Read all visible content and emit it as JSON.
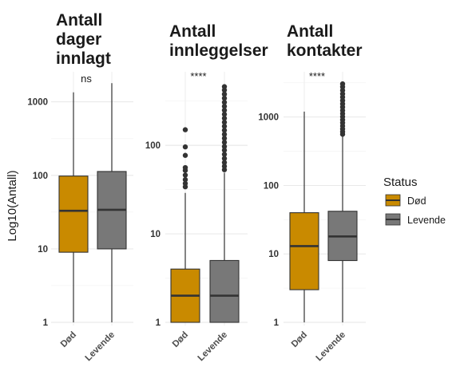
{
  "y_axis_title": "Log10(Antall)",
  "legend": {
    "title": "Status",
    "items": [
      {
        "label": "Død",
        "color": "#C98A00"
      },
      {
        "label": "Levende",
        "color": "#787878"
      }
    ]
  },
  "chart_data": [
    {
      "type": "boxplot",
      "title": [
        "Antall",
        "dager",
        "innlagt"
      ],
      "scale": "log10",
      "ylim": [
        1,
        2000
      ],
      "y_ticks": [
        1,
        10,
        100,
        1000
      ],
      "y_tick_labels": [
        "1",
        "10",
        "100",
        "1000"
      ],
      "categories": [
        "Død",
        "Levende"
      ],
      "significance": "ns",
      "boxes": [
        {
          "category": "Død",
          "min": 1,
          "q1": 9,
          "median": 33,
          "q3": 98,
          "max": 1350,
          "outliers": []
        },
        {
          "category": "Levende",
          "min": 1,
          "q1": 10,
          "median": 34,
          "q3": 113,
          "max": 1800,
          "outliers": []
        }
      ]
    },
    {
      "type": "boxplot",
      "title": [
        "Antall",
        "innleggelser"
      ],
      "scale": "log10",
      "ylim": [
        1,
        550
      ],
      "y_ticks": [
        1,
        10,
        100
      ],
      "y_tick_labels": [
        "1",
        "10",
        "100"
      ],
      "categories": [
        "Død",
        "Levende"
      ],
      "significance": "****",
      "boxes": [
        {
          "category": "Død",
          "min": 1,
          "q1": 1,
          "median": 2,
          "q3": 4,
          "max": 29,
          "outliers": [
            34,
            37,
            41,
            46,
            52,
            56,
            77,
            96,
            150
          ]
        },
        {
          "category": "Levende",
          "min": 1,
          "q1": 1,
          "median": 2,
          "q3": 5,
          "max": 49,
          "outliers": [
            53,
            58,
            64,
            71,
            79,
            88,
            97,
            108,
            120,
            133,
            148,
            164,
            182,
            202,
            224,
            249,
            276,
            306,
            340,
            378,
            420,
            460
          ]
        }
      ]
    },
    {
      "type": "boxplot",
      "title": [
        "Antall",
        "kontakter"
      ],
      "scale": "log10",
      "ylim": [
        1,
        3500
      ],
      "y_ticks": [
        1,
        10,
        100,
        1000
      ],
      "y_tick_labels": [
        "1",
        "10",
        "100",
        "1000"
      ],
      "categories": [
        "Død",
        "Levende"
      ],
      "significance": "****",
      "boxes": [
        {
          "category": "Død",
          "min": 1,
          "q1": 3,
          "median": 13,
          "q3": 40,
          "max": 1200,
          "outliers": []
        },
        {
          "category": "Levende",
          "min": 1,
          "q1": 8,
          "median": 18,
          "q3": 42,
          "max": 520,
          "outliers": [
            560,
            610,
            670,
            740,
            820,
            910,
            1010,
            1120,
            1250,
            1400,
            1560,
            1740,
            1950,
            2180,
            2450,
            2750,
            3050
          ]
        }
      ]
    }
  ]
}
